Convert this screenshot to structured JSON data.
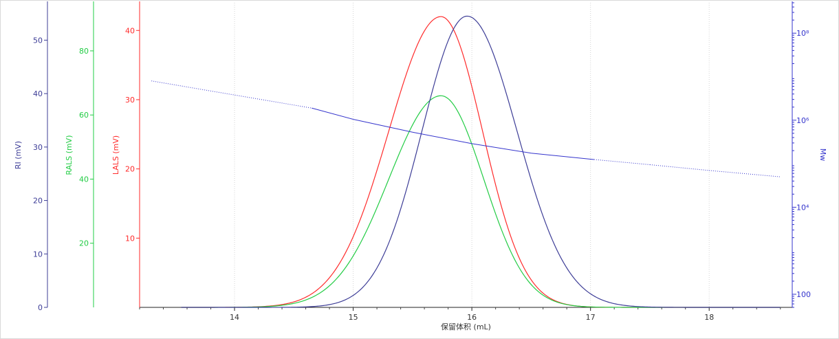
{
  "chart_data": {
    "type": "line",
    "xlabel": "保留体积 (mL)",
    "xlim": [
      13.2,
      18.7
    ],
    "x_ticks": [
      14,
      15,
      16,
      17,
      18
    ],
    "grid_x": true,
    "axes": {
      "ri": {
        "label": "RI (mV)",
        "color": "#3c3c96",
        "lim": [
          0,
          57
        ],
        "ticks": [
          0,
          10,
          20,
          30,
          40,
          50
        ]
      },
      "rals": {
        "label": "RALS (mV)",
        "color": "#22cc44",
        "lim": [
          0,
          95
        ],
        "ticks": [
          20,
          40,
          60,
          80
        ]
      },
      "lals": {
        "label": "LALS (mV)",
        "color": "#ff2a2a",
        "lim": [
          0,
          44
        ],
        "ticks": [
          10,
          20,
          30,
          40
        ]
      },
      "mw": {
        "label": "Mw",
        "color": "#3333cc",
        "scale": "log",
        "lim": [
          50,
          500000000
        ],
        "ticks": [
          {
            "value": 100,
            "label": "100"
          },
          {
            "value": 10000,
            "label": "10⁴"
          },
          {
            "value": 1000000,
            "label": "10⁶"
          },
          {
            "value": 100000000,
            "label": "10⁸"
          }
        ]
      }
    },
    "series": [
      {
        "name": "LALS",
        "axis": "lals",
        "color": "#ff2a2a",
        "style": "solid",
        "peak_x": 15.74,
        "peak_y": 42.0,
        "sigma_left": 0.44,
        "sigma_right": 0.35,
        "x_range": [
          13.55,
          18.6
        ]
      },
      {
        "name": "RALS",
        "axis": "rals",
        "color": "#22cc44",
        "style": "solid",
        "peak_x": 15.74,
        "peak_y": 66.0,
        "sigma_left": 0.44,
        "sigma_right": 0.36,
        "x_range": [
          13.55,
          18.6
        ]
      },
      {
        "name": "RI",
        "axis": "ri",
        "color": "#3c3c96",
        "style": "solid",
        "peak_x": 15.96,
        "peak_y": 54.5,
        "sigma_left": 0.38,
        "sigma_right": 0.42,
        "x_range": [
          13.55,
          18.6
        ]
      },
      {
        "name": "Mw",
        "axis": "mw",
        "color": "#3333cc",
        "points": [
          {
            "x": 13.3,
            "y": 8000000,
            "style": "dotted"
          },
          {
            "x": 14.65,
            "y": 1900000,
            "style": "dotted"
          },
          {
            "x": 14.65,
            "y": 1900000,
            "style": "solid"
          },
          {
            "x": 15.0,
            "y": 1050000,
            "style": "solid"
          },
          {
            "x": 15.5,
            "y": 530000,
            "style": "solid"
          },
          {
            "x": 16.0,
            "y": 290000,
            "style": "solid"
          },
          {
            "x": 16.5,
            "y": 175000,
            "style": "solid"
          },
          {
            "x": 17.03,
            "y": 125000,
            "style": "solid"
          },
          {
            "x": 17.03,
            "y": 125000,
            "style": "dotted"
          },
          {
            "x": 17.5,
            "y": 95000,
            "style": "dotted"
          },
          {
            "x": 18.0,
            "y": 70000,
            "style": "dotted"
          },
          {
            "x": 18.6,
            "y": 50000,
            "style": "dotted"
          }
        ]
      }
    ]
  }
}
